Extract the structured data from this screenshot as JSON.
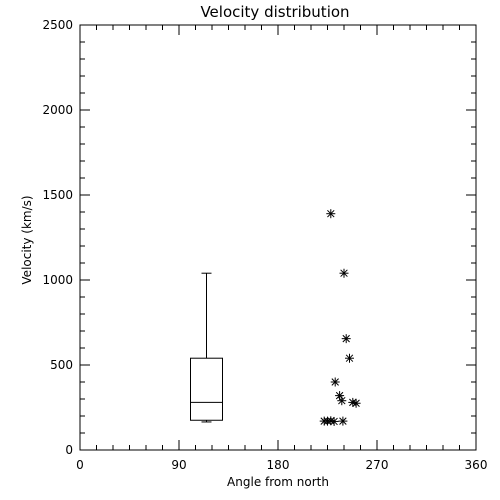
{
  "chart_data": {
    "type": "scatter",
    "title": "Velocity distribution",
    "xlabel": "Angle from north",
    "ylabel": "Velocity (km/s)",
    "xlim": [
      0,
      360
    ],
    "ylim": [
      0,
      2500
    ],
    "x_ticks": [
      "0",
      "90",
      "180",
      "270",
      "360"
    ],
    "y_ticks": [
      "0",
      "500",
      "1000",
      "1500",
      "2000",
      "2500"
    ],
    "x_tick_values": [
      0,
      90,
      180,
      270,
      360
    ],
    "y_tick_values": [
      0,
      500,
      1000,
      1500,
      2000,
      2500
    ],
    "grid": false,
    "boxplot": {
      "x": 115,
      "min": 165,
      "q1": 175,
      "median": 280,
      "q3": 540,
      "max": 1040
    },
    "points": [
      {
        "x": 228,
        "y": 1390
      },
      {
        "x": 240,
        "y": 1040
      },
      {
        "x": 242,
        "y": 655
      },
      {
        "x": 245,
        "y": 540
      },
      {
        "x": 232,
        "y": 400
      },
      {
        "x": 236,
        "y": 320
      },
      {
        "x": 238,
        "y": 290
      },
      {
        "x": 248,
        "y": 280
      },
      {
        "x": 251,
        "y": 275
      },
      {
        "x": 222,
        "y": 170
      },
      {
        "x": 225,
        "y": 170
      },
      {
        "x": 228,
        "y": 172
      },
      {
        "x": 231,
        "y": 168
      },
      {
        "x": 239,
        "y": 170
      }
    ]
  }
}
